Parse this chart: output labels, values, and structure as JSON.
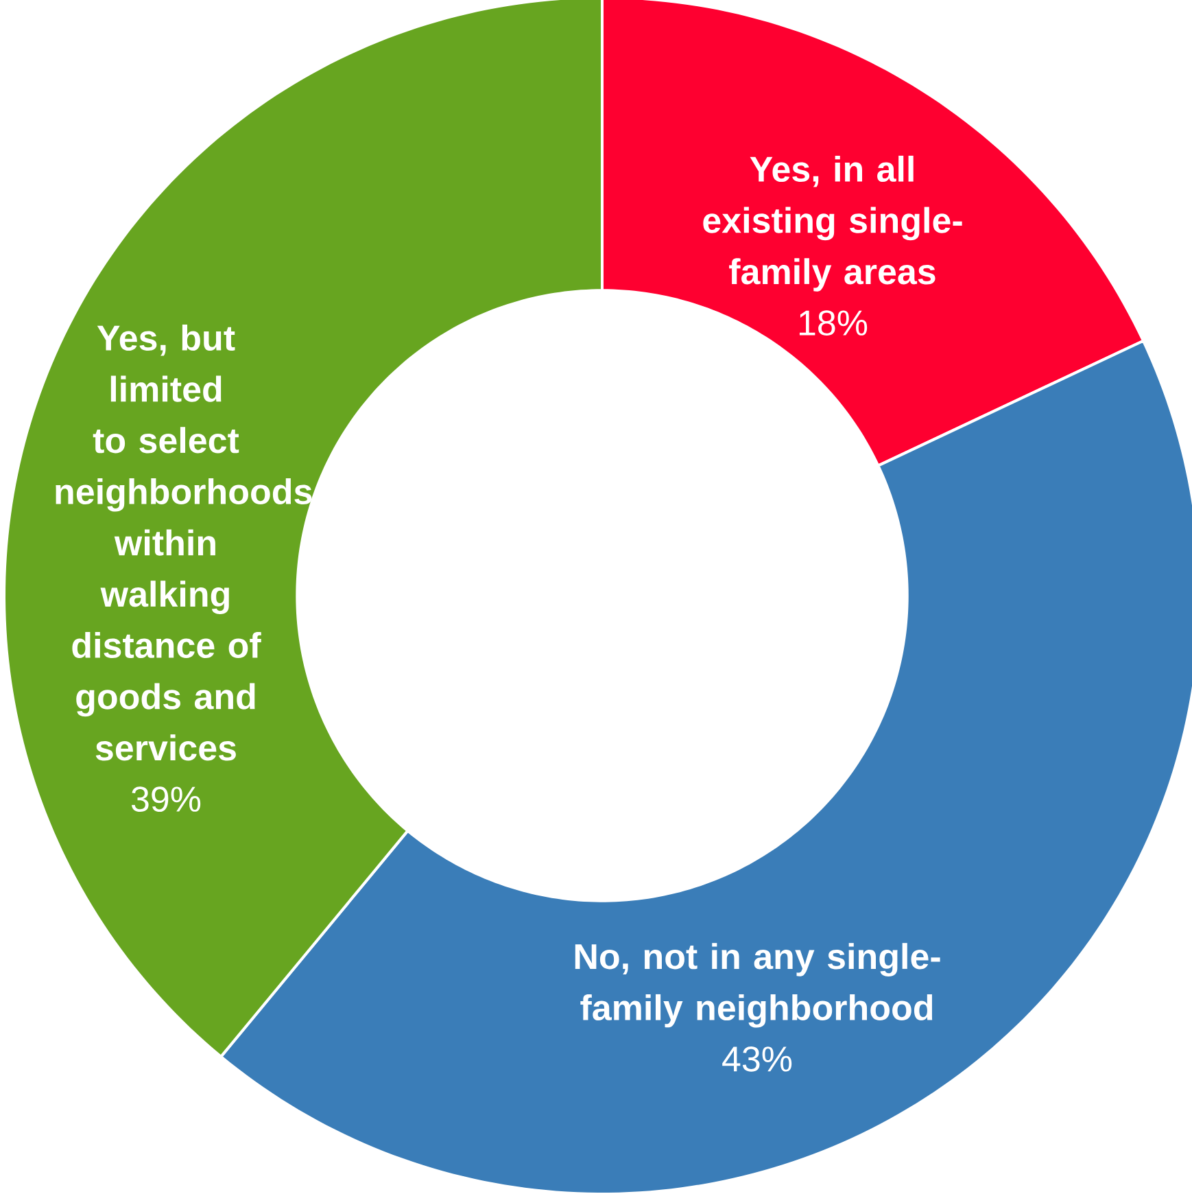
{
  "chart_data": {
    "type": "donut",
    "categories": [
      "Yes, in all existing single-family areas",
      "No, not in any single-family neighborhood",
      "Yes, but limited to select neighborhoods within walking distance of goods and services"
    ],
    "values": [
      18,
      43,
      39
    ],
    "colors": [
      "#fe0030",
      "#3a7db8",
      "#67a520"
    ],
    "value_labels": [
      "18%",
      "43%",
      "39%"
    ]
  }
}
